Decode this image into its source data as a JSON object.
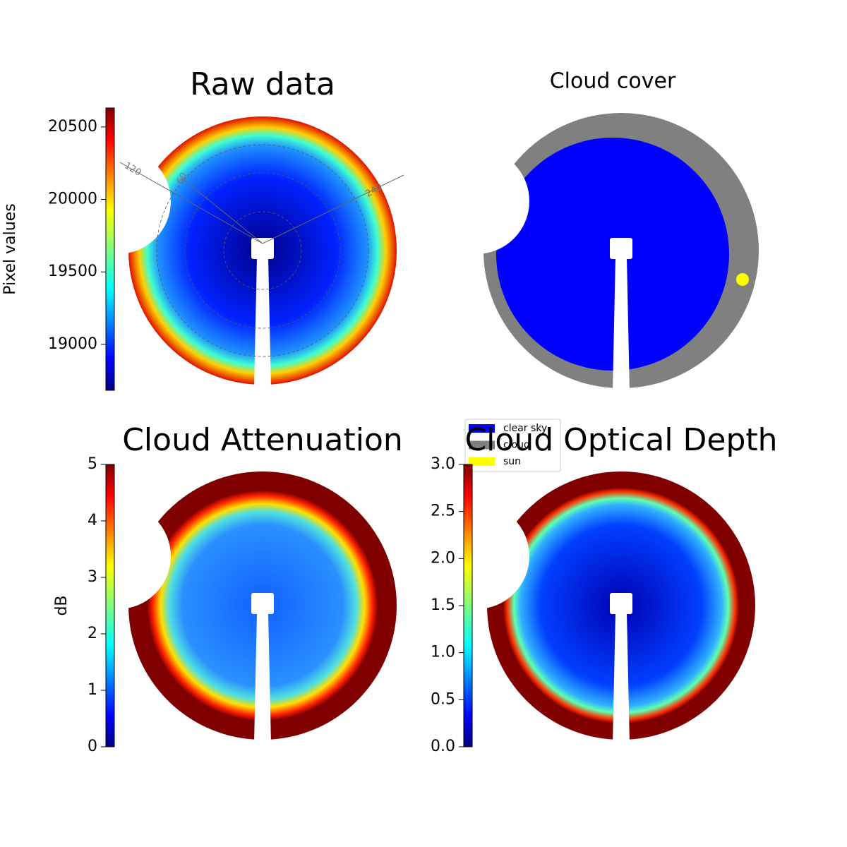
{
  "chart_data": [
    {
      "type": "image",
      "title": "Raw data",
      "colormap": "jet",
      "colorbar": {
        "label": "Pixel values",
        "lim": [
          18683,
          20631
        ],
        "ticks": [
          19000,
          19500,
          20000,
          20500
        ]
      },
      "polar_labels": [
        "120",
        "60",
        "240"
      ]
    },
    {
      "type": "image",
      "title": "Cloud cover",
      "legend": [
        {
          "name": "clear sky",
          "color": "#0000ff"
        },
        {
          "name": "cloud",
          "color": "#808080"
        },
        {
          "name": "sun",
          "color": "#ffff00"
        }
      ]
    },
    {
      "type": "image",
      "title": "Cloud Attenuation",
      "colormap": "jet",
      "colorbar": {
        "label": "dB",
        "lim": [
          0,
          5
        ],
        "ticks": [
          0,
          1,
          2,
          3,
          4,
          5
        ]
      }
    },
    {
      "type": "image",
      "title": "Cloud Optical Depth",
      "colormap": "jet",
      "colorbar": {
        "lim": [
          0,
          3
        ],
        "ticks": [
          {
            "value": 0,
            "label": "0.0"
          },
          {
            "value": 0.5,
            "label": "0.5"
          },
          {
            "value": 1,
            "label": "1.0"
          },
          {
            "value": 1.5,
            "label": "1.5"
          },
          {
            "value": 2,
            "label": "2.0"
          },
          {
            "value": 2.5,
            "label": "2.5"
          },
          {
            "value": 3,
            "label": "3.0"
          }
        ]
      }
    }
  ]
}
